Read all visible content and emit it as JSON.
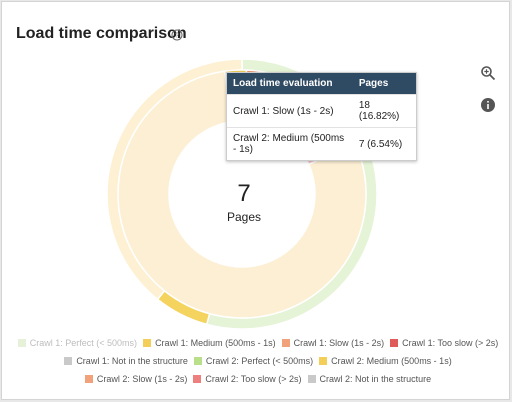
{
  "header": {
    "title": "Load time comparison"
  },
  "icons": {
    "help": "help-circle-icon",
    "zoom": "zoom-in-icon",
    "info": "info-icon"
  },
  "center": {
    "value": "7",
    "label": "Pages"
  },
  "tooltip": {
    "col1": "Load time evaluation",
    "col2": "Pages",
    "rows": [
      {
        "label": "Crawl 1: Slow (1s - 2s)",
        "value": "18 (16.82%)"
      },
      {
        "label": "Crawl 2: Medium (500ms - 1s)",
        "value": "7 (6.54%)"
      }
    ]
  },
  "chart_data": {
    "type": "pie",
    "subtype": "donut",
    "rings": [
      {
        "name": "Crawl 1",
        "slices": [
          {
            "label": "Crawl 1: Perfect (< 500ms)",
            "value": 79.44,
            "color": "#fcefd4"
          },
          {
            "label": "Crawl 1: Medium (500ms - 1s)",
            "value": 2.8,
            "color": "#f3cf5a"
          },
          {
            "label": "Crawl 1: Slow (1s - 2s)",
            "value": 16.82,
            "color": "#ef9262"
          },
          {
            "label": "Crawl 1: Too slow (> 2s)",
            "value": 0.94,
            "color": "#f6c7cc"
          },
          {
            "label": "Crawl 1: Not in the structure",
            "value": 0,
            "color": "#c9c9c9"
          }
        ]
      },
      {
        "name": "Crawl 2",
        "slices": [
          {
            "label": "Crawl 2: Perfect (< 500ms)",
            "value": 54.21,
            "color": "#e5f3d6"
          },
          {
            "label": "Crawl 2: Medium (500ms - 1s)",
            "value": 6.54,
            "color": "#f4d35e"
          },
          {
            "label": "Crawl 2: Slow (1s - 2s)",
            "value": 0,
            "color": "#ef9262"
          },
          {
            "label": "Crawl 2: Too slow (> 2s)",
            "value": 0,
            "color": "#e05a5a"
          },
          {
            "label": "Crawl 2: Not in the structure",
            "value": 39.25,
            "color": "#fdf0d3"
          }
        ]
      }
    ],
    "legend": [
      {
        "label": "Crawl 1: Perfect (< 500ms)",
        "color": "#e7f0d8",
        "dim": true
      },
      {
        "label": "Crawl 1: Medium (500ms - 1s)",
        "color": "#f3cf5a",
        "dim": false
      },
      {
        "label": "Crawl 1: Slow (1s - 2s)",
        "color": "#f1a27a",
        "dim": false
      },
      {
        "label": "Crawl 1: Too slow (> 2s)",
        "color": "#e05a5a",
        "dim": false
      },
      {
        "label": "Crawl 1: Not in the structure",
        "color": "#c9c9c9",
        "dim": false
      },
      {
        "label": "Crawl 2: Perfect (< 500ms)",
        "color": "#b9df8b",
        "dim": false
      },
      {
        "label": "Crawl 2: Medium (500ms - 1s)",
        "color": "#f3cf5a",
        "dim": false
      },
      {
        "label": "Crawl 2: Slow (1s - 2s)",
        "color": "#f1a27a",
        "dim": false
      },
      {
        "label": "Crawl 2: Too slow (> 2s)",
        "color": "#ee7f7f",
        "dim": false
      },
      {
        "label": "Crawl 2: Not in the structure",
        "color": "#c9c9c9",
        "dim": false
      }
    ],
    "legend_position": "bottom"
  }
}
